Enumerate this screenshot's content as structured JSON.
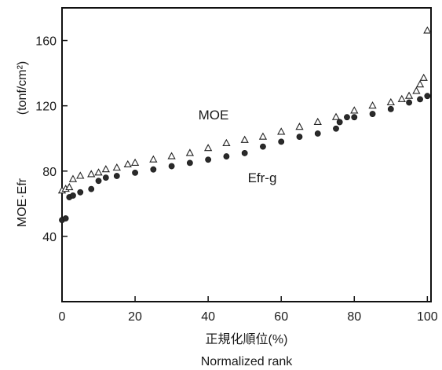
{
  "chart_data": {
    "type": "scatter",
    "xlabel_jp": "正規化順位(%)",
    "xlabel": "Normalized rank",
    "ylabel": "MOE·Efr",
    "yunit": "(tonf/cm²)",
    "xlim": [
      0,
      101
    ],
    "ylim": [
      0,
      180
    ],
    "x_ticks": [
      0,
      20,
      40,
      60,
      80,
      100
    ],
    "y_ticks": [
      40,
      80,
      120,
      160
    ],
    "grid": false,
    "legend": "none",
    "annotations": [
      {
        "text": "MOE",
        "series": "MOE"
      },
      {
        "text": "Efr-g",
        "series": "Efr-g"
      }
    ],
    "series": [
      {
        "name": "MOE",
        "marker": "open-triangle",
        "x": [
          0,
          1,
          2,
          3,
          5,
          8,
          10,
          12,
          15,
          18,
          20,
          25,
          30,
          35,
          40,
          45,
          50,
          55,
          60,
          65,
          70,
          75,
          80,
          85,
          90,
          93,
          95,
          97,
          98,
          99,
          100
        ],
        "y": [
          68,
          69,
          70,
          75,
          77,
          78,
          79,
          81,
          82,
          84,
          85,
          87,
          89,
          91,
          94,
          97,
          99,
          101,
          104,
          107,
          110,
          113,
          117,
          120,
          122,
          124,
          126,
          129,
          133,
          137,
          166
        ]
      },
      {
        "name": "Efr-g",
        "marker": "filled-circle",
        "x": [
          0,
          1,
          2,
          3,
          5,
          8,
          10,
          12,
          15,
          20,
          25,
          30,
          35,
          40,
          45,
          50,
          55,
          60,
          65,
          70,
          75,
          76,
          78,
          80,
          85,
          90,
          95,
          98,
          100
        ],
        "y": [
          50,
          51,
          64,
          65,
          67,
          69,
          74,
          76,
          77,
          79,
          81,
          83,
          85,
          87,
          89,
          91,
          95,
          98,
          101,
          103,
          106,
          110,
          113,
          113,
          115,
          118,
          122,
          124,
          126
        ]
      }
    ]
  }
}
